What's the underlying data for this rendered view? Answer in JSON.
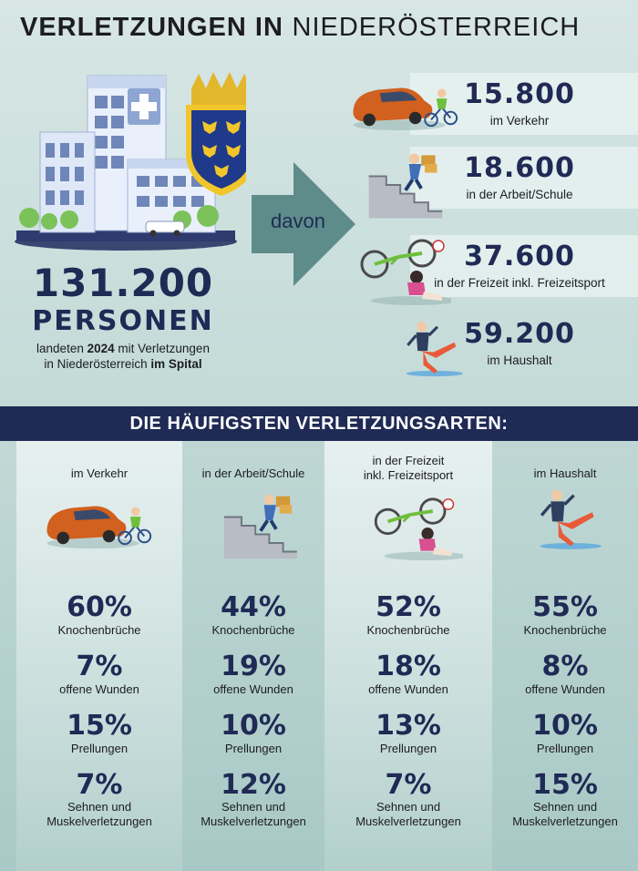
{
  "title": {
    "bold": "VERLETZUNGEN IN",
    "light": "NIEDERÖSTERREICH"
  },
  "summary": {
    "number": "131.200",
    "label": "PERSONEN",
    "sub_line1_pre": "landeten ",
    "sub_line1_year": "2024",
    "sub_line1_post": " mit Verletzungen",
    "sub_line2_pre": "in Niederösterreich ",
    "sub_line2_bold": "im Spital"
  },
  "arrow_label": "davon",
  "categories": [
    {
      "value": "15.800",
      "label": "im Verkehr",
      "icon": "car-cyclist-icon"
    },
    {
      "value": "18.600",
      "label": "in der Arbeit/Schule",
      "icon": "stairs-fall-icon"
    },
    {
      "value": "37.600",
      "label": "in der Freizeit inkl. Freizeitsport",
      "icon": "bicycle-fall-icon"
    },
    {
      "value": "59.200",
      "label": "im Haushalt",
      "icon": "slip-fall-icon"
    }
  ],
  "banner": "DIE HÄUFIGSTEN VERLETZUNGSARTEN:",
  "columns": [
    {
      "head": [
        "im Verkehr"
      ],
      "icon": "car-cyclist-icon"
    },
    {
      "head": [
        "in der Arbeit/Schule"
      ],
      "icon": "stairs-fall-icon"
    },
    {
      "head": [
        "in der Freizeit",
        "inkl. Freizeitsport"
      ],
      "icon": "bicycle-fall-icon"
    },
    {
      "head": [
        "im Haushalt"
      ],
      "icon": "slip-fall-icon"
    }
  ],
  "injury_types": [
    [
      "Knochenbrüche"
    ],
    [
      "offene Wunden"
    ],
    [
      "Prellungen"
    ],
    [
      "Sehnen und",
      "Muskelverletzungen"
    ]
  ],
  "chart_data": [
    {
      "type": "table",
      "title": "131.200 PERSONEN",
      "categories": [
        "im Verkehr",
        "in der Arbeit/Schule",
        "in der Freizeit inkl. Freizeitsport",
        "im Haushalt"
      ],
      "values": [
        15800,
        18600,
        37600,
        59200
      ]
    },
    {
      "type": "table",
      "title": "DIE HÄUFIGSTEN VERLETZUNGSARTEN:",
      "categories": [
        "im Verkehr",
        "in der Arbeit/Schule",
        "in der Freizeit inkl. Freizeitsport",
        "im Haushalt"
      ],
      "series": [
        {
          "name": "Knochenbrüche",
          "values": [
            "60%",
            "44%",
            "52%",
            "55%"
          ]
        },
        {
          "name": "offene Wunden",
          "values": [
            "7%",
            "19%",
            "18%",
            "8%"
          ]
        },
        {
          "name": "Prellungen",
          "values": [
            "15%",
            "10%",
            "13%",
            "10%"
          ]
        },
        {
          "name": "Sehnen und Muskelverletzungen",
          "values": [
            "7%",
            "12%",
            "7%",
            "15%"
          ]
        }
      ]
    }
  ],
  "colors": {
    "navy": "#1f2a55",
    "banner": "#1f2a55",
    "car": "#d2601f",
    "arrow": "#5e8c8a"
  }
}
